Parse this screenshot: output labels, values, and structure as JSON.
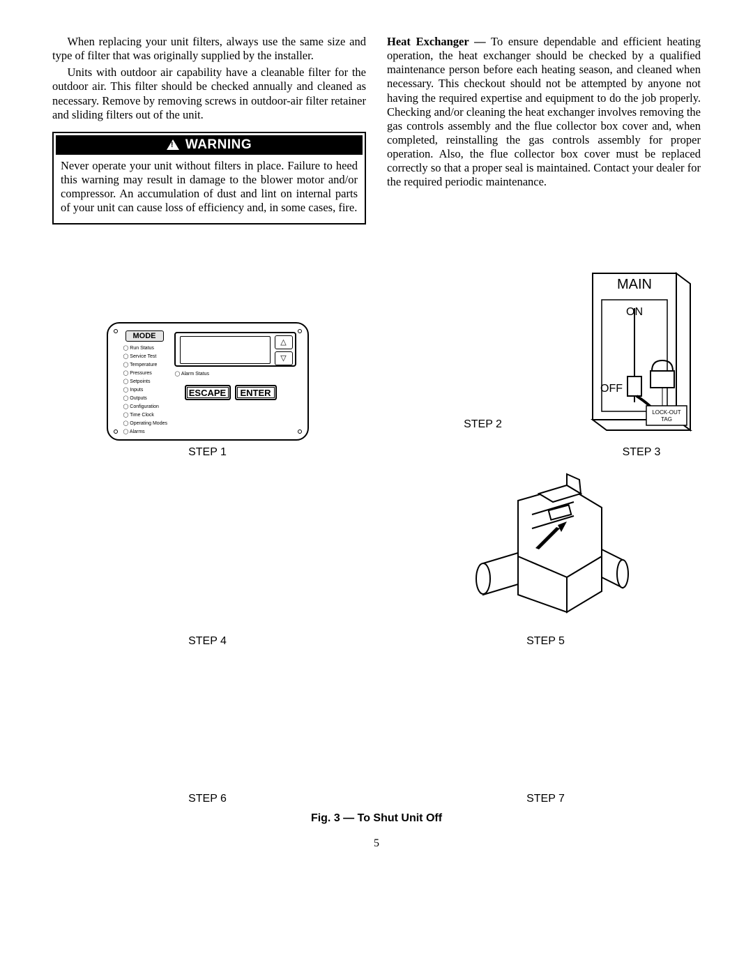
{
  "leftCol": {
    "p1": "When replacing your unit filters, always use the same size and type of filter that was originally supplied by the installer.",
    "p2": "Units with outdoor air capability have a cleanable filter for the outdoor air. This filter should be checked annually and cleaned as necessary. Remove by removing screws in outdoor-air filter retainer and sliding filters out of the unit."
  },
  "warning": {
    "label": "WARNING",
    "body": "Never operate your unit without filters in place. Failure to heed this warning may result in damage to the blower motor and/or compressor. An accumulation of dust and lint on internal parts of your unit can cause loss of efficiency and, in some cases, fire."
  },
  "rightCol": {
    "heatExLead": "Heat Exchanger —",
    "heatExBody": " To ensure dependable and efficient heating operation, the heat exchanger should be checked by a qualified maintenance person before each heating season, and cleaned when necessary. This checkout should not be attempted by anyone not having the required expertise and equipment to do the job properly. Checking and/or cleaning the heat exchanger involves removing the gas controls assembly and the flue collector box cover and, when completed, reinstalling the gas controls assembly for proper operation. Also, the flue collector box cover must be replaced correctly so that a proper seal is maintained. Contact your dealer for the required periodic maintenance."
  },
  "panel": {
    "mode": "MODE",
    "escape": "ESCAPE",
    "enter": "ENTER",
    "alarmStatus": "Alarm Status",
    "leds": [
      "Run Status",
      "Service Test",
      "Temperature",
      "Pressures",
      "Setpoints",
      "Inputs",
      "Outputs",
      "Configuration",
      "Time Clock",
      "Operating Modes",
      "Alarms"
    ]
  },
  "mainSwitch": {
    "title": "MAIN",
    "on": "ON",
    "off": "OFF",
    "lockout": "LOCK-OUT",
    "tag": "TAG"
  },
  "steps": {
    "s1": "STEP 1",
    "s2": "STEP 2",
    "s3": "STEP 3",
    "s4": "STEP 4",
    "s5": "STEP 5",
    "s6": "STEP 6",
    "s7": "STEP 7"
  },
  "figCaption": "Fig. 3 — To Shut Unit Off",
  "pageNumber": "5"
}
